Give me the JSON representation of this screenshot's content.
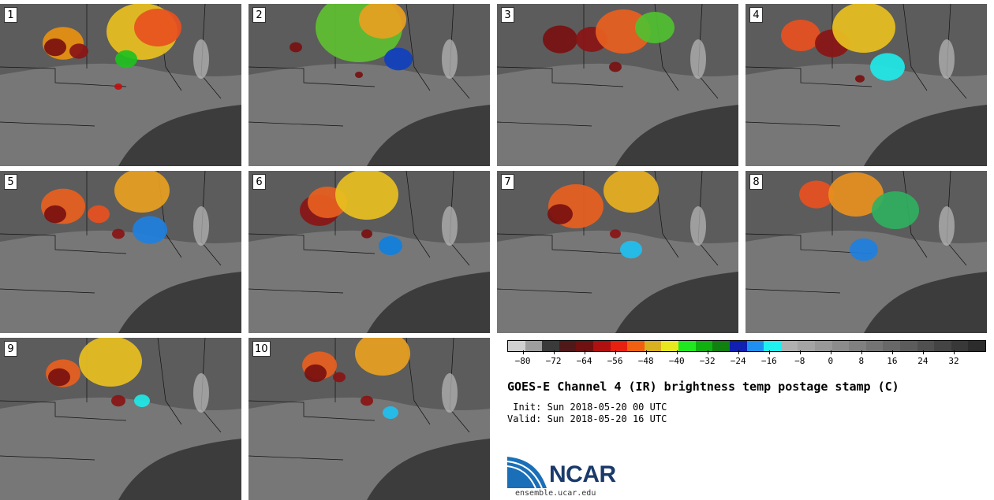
{
  "panels": [
    {
      "label": "1"
    },
    {
      "label": "2"
    },
    {
      "label": "3"
    },
    {
      "label": "4"
    },
    {
      "label": "5"
    },
    {
      "label": "6"
    },
    {
      "label": "7"
    },
    {
      "label": "8"
    },
    {
      "label": "9"
    },
    {
      "label": "10"
    }
  ],
  "colorbar": {
    "colors": [
      "#d0d0d0",
      "#9e9e9e",
      "#3a3a3a",
      "#501818",
      "#701010",
      "#b01010",
      "#e82010",
      "#f06010",
      "#d8b020",
      "#e8e820",
      "#20e820",
      "#10b010",
      "#108010",
      "#1020b0",
      "#2090f0",
      "#20f0f0",
      "#b0b0b0",
      "#a4a4a4",
      "#989898",
      "#8c8c8c",
      "#808080",
      "#747474",
      "#686868",
      "#5c5c5c",
      "#505050",
      "#444444",
      "#383838",
      "#2c2c2c"
    ],
    "tick_labels": [
      "−80",
      "−72",
      "−64",
      "−56",
      "−48",
      "−40",
      "−32",
      "−24",
      "−16",
      "−8",
      "0",
      "8",
      "16",
      "24",
      "32"
    ],
    "min": -84,
    "max": 40
  },
  "title": "GOES-E Channel 4 (IR) brightness temp postage stamp (C)",
  "init_line": " Init: Sun 2018-05-20 00 UTC",
  "valid_line": "Valid: Sun 2018-05-20 16 UTC",
  "logo": {
    "text": "NCAR",
    "url": "ensemble.ucar.edu"
  }
}
